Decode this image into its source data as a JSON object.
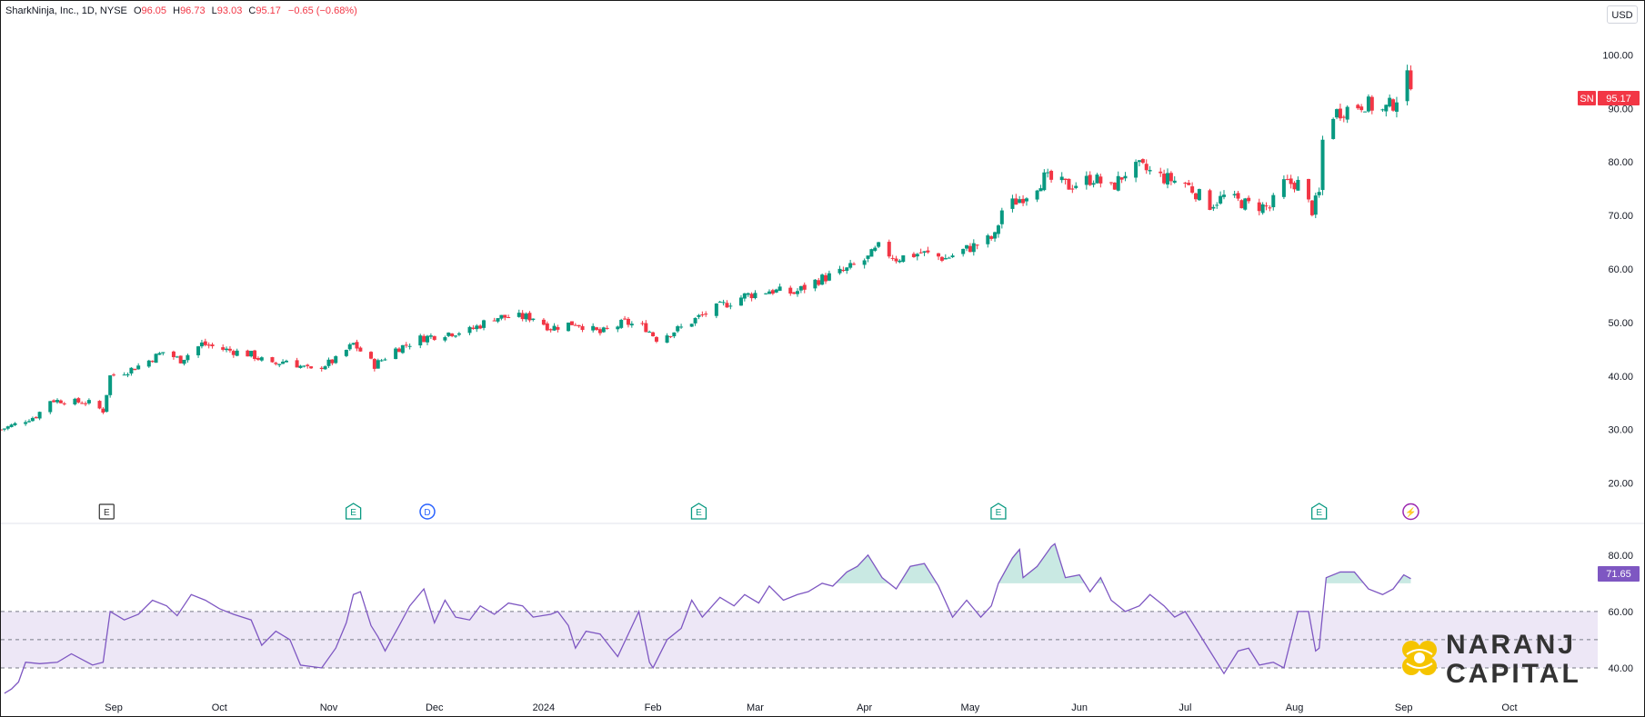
{
  "header": {
    "symbol_line": "SharkNinja, Inc., 1D, NYSE",
    "o_label": "O",
    "o": "96.05",
    "h_label": "H",
    "h": "96.73",
    "l_label": "L",
    "l": "93.03",
    "c_label": "C",
    "c": "95.17",
    "change": "−0.65 (−0.68%)"
  },
  "currency_button": "USD",
  "last_price": {
    "ticker": "SN",
    "value": "95.17",
    "color": "#f23645"
  },
  "rsi_last": {
    "value": "71.65",
    "color": "#7e57c2"
  },
  "colors": {
    "up": "#089981",
    "down": "#f23645",
    "rsi": "#7e57c2",
    "band": "#ede7f6"
  },
  "events": [
    {
      "letter": "E",
      "kind": "earnings-past",
      "date": "2023-08-30"
    },
    {
      "letter": "E",
      "kind": "earnings",
      "date": "2023-11-08"
    },
    {
      "letter": "D",
      "kind": "dividend",
      "date": "2023-11-29"
    },
    {
      "letter": "E",
      "kind": "earnings",
      "date": "2024-02-14"
    },
    {
      "letter": "E",
      "kind": "earnings",
      "date": "2024-05-09"
    },
    {
      "letter": "E",
      "kind": "earnings",
      "date": "2024-08-08"
    },
    {
      "letter": "⚡",
      "kind": "event",
      "date": "2024-09-03"
    }
  ],
  "logo": {
    "line1": "NARANJ",
    "line2": "CAPITAL",
    "icon": "flower-icon"
  },
  "chart_data": [
    {
      "type": "candlestick",
      "ylim": [
        15,
        105
      ],
      "y_ticks": [
        "100.00",
        "90.00",
        "80.00",
        "70.00",
        "60.00",
        "50.00",
        "40.00",
        "30.00",
        "20.00"
      ],
      "x_range": [
        "2023-07-31",
        "2024-10-25"
      ],
      "x_ticks": [
        {
          "label": "Sep",
          "date": "2023-09-01"
        },
        {
          "label": "Oct",
          "date": "2023-10-01"
        },
        {
          "label": "Nov",
          "date": "2023-11-01"
        },
        {
          "label": "Dec",
          "date": "2023-12-01"
        },
        {
          "label": "2024",
          "date": "2024-01-01"
        },
        {
          "label": "Feb",
          "date": "2024-02-01"
        },
        {
          "label": "Mar",
          "date": "2024-03-01"
        },
        {
          "label": "Apr",
          "date": "2024-04-01"
        },
        {
          "label": "May",
          "date": "2024-05-01"
        },
        {
          "label": "Jun",
          "date": "2024-06-01"
        },
        {
          "label": "Jul",
          "date": "2024-07-01"
        },
        {
          "label": "Aug",
          "date": "2024-08-01"
        },
        {
          "label": "Sep",
          "date": "2024-09-01"
        },
        {
          "label": "Oct",
          "date": "2024-10-01"
        }
      ],
      "close_path": [
        [
          "2023-07-31",
          30
        ],
        [
          "2023-08-10",
          32.5
        ],
        [
          "2023-08-14",
          35.5
        ],
        [
          "2023-08-25",
          35
        ],
        [
          "2023-08-29",
          33.5
        ],
        [
          "2023-08-31",
          40
        ],
        [
          "2023-09-05",
          41
        ],
        [
          "2023-09-10",
          42.5
        ],
        [
          "2023-09-15",
          44.5
        ],
        [
          "2023-09-20",
          43
        ],
        [
          "2023-09-26",
          46
        ],
        [
          "2023-10-02",
          45
        ],
        [
          "2023-10-10",
          44
        ],
        [
          "2023-10-16",
          42
        ],
        [
          "2023-10-20",
          43
        ],
        [
          "2023-10-27",
          41
        ],
        [
          "2023-11-03",
          43
        ],
        [
          "2023-11-08",
          46
        ],
        [
          "2023-11-14",
          42
        ],
        [
          "2023-11-20",
          45
        ],
        [
          "2023-11-27",
          47
        ],
        [
          "2023-12-04",
          48
        ],
        [
          "2023-12-11",
          48.5
        ],
        [
          "2023-12-18",
          51
        ],
        [
          "2023-12-29",
          51
        ],
        [
          "2024-01-03",
          49
        ],
        [
          "2024-01-10",
          50
        ],
        [
          "2024-01-17",
          48
        ],
        [
          "2024-01-24",
          50
        ],
        [
          "2024-01-30",
          49
        ],
        [
          "2024-02-02",
          47
        ],
        [
          "2024-02-09",
          49
        ],
        [
          "2024-02-14",
          51
        ],
        [
          "2024-02-20",
          53
        ],
        [
          "2024-02-27",
          55
        ],
        [
          "2024-03-05",
          56
        ],
        [
          "2024-03-12",
          55.5
        ],
        [
          "2024-03-19",
          58
        ],
        [
          "2024-03-26",
          59.5
        ],
        [
          "2024-04-02",
          62
        ],
        [
          "2024-04-05",
          64
        ],
        [
          "2024-04-10",
          62
        ],
        [
          "2024-04-17",
          63
        ],
        [
          "2024-04-24",
          62
        ],
        [
          "2024-05-01",
          64
        ],
        [
          "2024-05-08",
          66
        ],
        [
          "2024-05-10",
          71
        ],
        [
          "2024-05-17",
          74
        ],
        [
          "2024-05-22",
          77
        ],
        [
          "2024-05-29",
          75.5
        ],
        [
          "2024-06-05",
          77
        ],
        [
          "2024-06-10",
          75
        ],
        [
          "2024-06-14",
          78
        ],
        [
          "2024-06-18",
          79
        ],
        [
          "2024-06-25",
          77
        ],
        [
          "2024-07-01",
          76
        ],
        [
          "2024-07-08",
          72
        ],
        [
          "2024-07-12",
          73.5
        ],
        [
          "2024-07-19",
          72
        ],
        [
          "2024-07-25",
          71.5
        ],
        [
          "2024-07-29",
          76
        ],
        [
          "2024-08-02",
          76
        ],
        [
          "2024-08-06",
          71
        ],
        [
          "2024-08-08",
          74
        ],
        [
          "2024-08-09",
          84
        ],
        [
          "2024-08-12",
          89
        ],
        [
          "2024-08-16",
          90
        ],
        [
          "2024-08-21",
          91
        ],
        [
          "2024-08-26",
          89.5
        ],
        [
          "2024-08-29",
          91
        ],
        [
          "2024-09-02",
          95.5
        ],
        [
          "2024-09-03",
          95.17
        ]
      ]
    },
    {
      "type": "line",
      "name": "RSI",
      "ylim": [
        30,
        88
      ],
      "y_ticks": [
        "80.00",
        "60.00",
        "40.00"
      ],
      "band": [
        40,
        60
      ],
      "midline": 50,
      "overbought_fill_above": 70,
      "points": [
        [
          "2023-08-01",
          31
        ],
        [
          "2023-08-03",
          32.5
        ],
        [
          "2023-08-05",
          35
        ],
        [
          "2023-08-07",
          42
        ],
        [
          "2023-08-11",
          41.5
        ],
        [
          "2023-08-16",
          42
        ],
        [
          "2023-08-20",
          45
        ],
        [
          "2023-08-26",
          41
        ],
        [
          "2023-08-29",
          42
        ],
        [
          "2023-08-31",
          60
        ],
        [
          "2023-09-04",
          57
        ],
        [
          "2023-09-08",
          59
        ],
        [
          "2023-09-12",
          64
        ],
        [
          "2023-09-16",
          62
        ],
        [
          "2023-09-19",
          58.5
        ],
        [
          "2023-09-23",
          66
        ],
        [
          "2023-09-27",
          64
        ],
        [
          "2023-10-01",
          61
        ],
        [
          "2023-10-05",
          59
        ],
        [
          "2023-10-10",
          57
        ],
        [
          "2023-10-13",
          48
        ],
        [
          "2023-10-17",
          53
        ],
        [
          "2023-10-21",
          50
        ],
        [
          "2023-10-24",
          41
        ],
        [
          "2023-10-30",
          40
        ],
        [
          "2023-11-03",
          47
        ],
        [
          "2023-11-06",
          56
        ],
        [
          "2023-11-08",
          66
        ],
        [
          "2023-11-10",
          67
        ],
        [
          "2023-11-13",
          55
        ],
        [
          "2023-11-15",
          51
        ],
        [
          "2023-11-17",
          46
        ],
        [
          "2023-11-21",
          55
        ],
        [
          "2023-11-24",
          62
        ],
        [
          "2023-11-28",
          68
        ],
        [
          "2023-12-01",
          56
        ],
        [
          "2023-12-04",
          64
        ],
        [
          "2023-12-07",
          58
        ],
        [
          "2023-12-11",
          57
        ],
        [
          "2023-12-14",
          62
        ],
        [
          "2023-12-18",
          59
        ],
        [
          "2023-12-22",
          63
        ],
        [
          "2023-12-26",
          62
        ],
        [
          "2023-12-29",
          58
        ],
        [
          "2024-01-03",
          59
        ],
        [
          "2024-01-05",
          60
        ],
        [
          "2024-01-08",
          55
        ],
        [
          "2024-01-10",
          47
        ],
        [
          "2024-01-13",
          53
        ],
        [
          "2024-01-17",
          52
        ],
        [
          "2024-01-22",
          44
        ],
        [
          "2024-01-25",
          52
        ],
        [
          "2024-01-28",
          60
        ],
        [
          "2024-01-31",
          42
        ],
        [
          "2024-02-01",
          40
        ],
        [
          "2024-02-05",
          50
        ],
        [
          "2024-02-09",
          54
        ],
        [
          "2024-02-12",
          64
        ],
        [
          "2024-02-15",
          58
        ],
        [
          "2024-02-20",
          65
        ],
        [
          "2024-02-24",
          62
        ],
        [
          "2024-02-27",
          66
        ],
        [
          "2024-03-02",
          63
        ],
        [
          "2024-03-05",
          69
        ],
        [
          "2024-03-09",
          64
        ],
        [
          "2024-03-13",
          66
        ],
        [
          "2024-03-16",
          67
        ],
        [
          "2024-03-20",
          70
        ],
        [
          "2024-03-23",
          69
        ],
        [
          "2024-03-27",
          74
        ],
        [
          "2024-03-30",
          76
        ],
        [
          "2024-04-02",
          80
        ],
        [
          "2024-04-06",
          72
        ],
        [
          "2024-04-10",
          68
        ],
        [
          "2024-04-14",
          76
        ],
        [
          "2024-04-18",
          77
        ],
        [
          "2024-04-22",
          69
        ],
        [
          "2024-04-26",
          58
        ],
        [
          "2024-04-30",
          64
        ],
        [
          "2024-05-04",
          58
        ],
        [
          "2024-05-07",
          62
        ],
        [
          "2024-05-09",
          70
        ],
        [
          "2024-05-13",
          79
        ],
        [
          "2024-05-15",
          82
        ],
        [
          "2024-05-16",
          72
        ],
        [
          "2024-05-20",
          76
        ],
        [
          "2024-05-24",
          83
        ],
        [
          "2024-05-25",
          84
        ],
        [
          "2024-05-28",
          72
        ],
        [
          "2024-06-01",
          73
        ],
        [
          "2024-06-04",
          67
        ],
        [
          "2024-06-07",
          72
        ],
        [
          "2024-06-10",
          64
        ],
        [
          "2024-06-14",
          60
        ],
        [
          "2024-06-18",
          62
        ],
        [
          "2024-06-21",
          66
        ],
        [
          "2024-06-25",
          62
        ],
        [
          "2024-06-28",
          58
        ],
        [
          "2024-07-01",
          60
        ],
        [
          "2024-07-04",
          54
        ],
        [
          "2024-07-08",
          46
        ],
        [
          "2024-07-12",
          38
        ],
        [
          "2024-07-16",
          46
        ],
        [
          "2024-07-19",
          47
        ],
        [
          "2024-07-22",
          41
        ],
        [
          "2024-07-26",
          42
        ],
        [
          "2024-07-29",
          40
        ],
        [
          "2024-08-02",
          60
        ],
        [
          "2024-08-05",
          60
        ],
        [
          "2024-08-07",
          46
        ],
        [
          "2024-08-08",
          47
        ],
        [
          "2024-08-10",
          72
        ],
        [
          "2024-08-14",
          74
        ],
        [
          "2024-08-18",
          74
        ],
        [
          "2024-08-22",
          68
        ],
        [
          "2024-08-26",
          66
        ],
        [
          "2024-08-29",
          68
        ],
        [
          "2024-09-01",
          73
        ],
        [
          "2024-09-03",
          71.65
        ]
      ]
    }
  ]
}
